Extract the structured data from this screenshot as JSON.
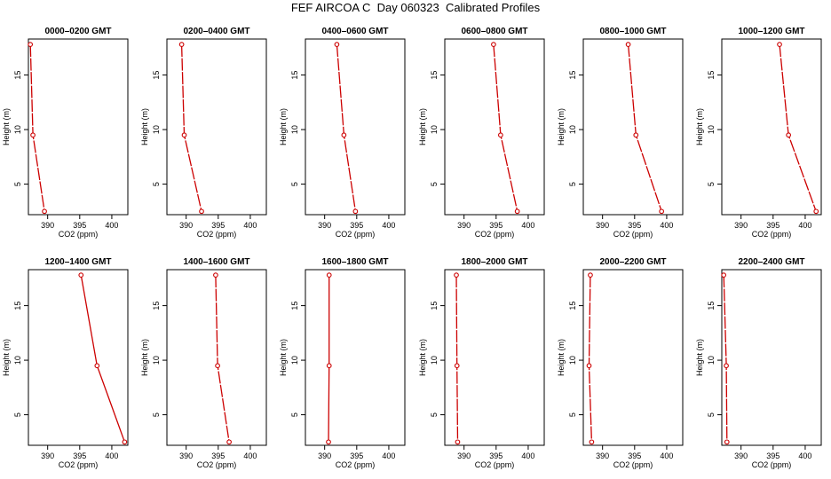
{
  "figure": {
    "title": "FEF AIRCOA C  Day 060323  Calibrated Profiles"
  },
  "colors": {
    "line": "#cc0000",
    "axis": "#000000"
  },
  "chart_data": [
    {
      "type": "line",
      "title": "0000–0200 GMT",
      "xlabel": "CO2 (ppm)",
      "ylabel": "Height (m)",
      "xlim": [
        387,
        402.5
      ],
      "ylim": [
        2.2,
        18.3
      ],
      "xticks": [
        "390",
        "395",
        "400"
      ],
      "yticks": [
        "5",
        "10",
        "15"
      ],
      "series": [
        {
          "x": [
            387.3,
            387.7,
            389.5
          ],
          "y": [
            17.8,
            9.5,
            2.5
          ],
          "style": "dashed"
        }
      ]
    },
    {
      "type": "line",
      "title": "0200–0400 GMT",
      "xlabel": "CO2 (ppm)",
      "ylabel": "Height (m)",
      "xlim": [
        387,
        402.5
      ],
      "ylim": [
        2.2,
        18.3
      ],
      "xticks": [
        "390",
        "395",
        "400"
      ],
      "yticks": [
        "5",
        "10",
        "15"
      ],
      "series": [
        {
          "x": [
            389.3,
            389.7,
            392.4
          ],
          "y": [
            17.8,
            9.5,
            2.5
          ],
          "style": "dashed"
        }
      ]
    },
    {
      "type": "line",
      "title": "0400–0600 GMT",
      "xlabel": "CO2 (ppm)",
      "ylabel": "Height (m)",
      "xlim": [
        387,
        402.5
      ],
      "ylim": [
        2.2,
        18.3
      ],
      "xticks": [
        "390",
        "395",
        "400"
      ],
      "yticks": [
        "5",
        "10",
        "15"
      ],
      "series": [
        {
          "x": [
            391.9,
            393.0,
            394.8
          ],
          "y": [
            17.8,
            9.5,
            2.5
          ],
          "style": "dashed"
        }
      ]
    },
    {
      "type": "line",
      "title": "0600–0800 GMT",
      "xlabel": "CO2 (ppm)",
      "ylabel": "Height (m)",
      "xlim": [
        387,
        402.5
      ],
      "ylim": [
        2.2,
        18.3
      ],
      "xticks": [
        "390",
        "395",
        "400"
      ],
      "yticks": [
        "5",
        "10",
        "15"
      ],
      "series": [
        {
          "x": [
            394.6,
            395.7,
            398.3
          ],
          "y": [
            17.8,
            9.5,
            2.5
          ],
          "style": "dashed"
        }
      ]
    },
    {
      "type": "line",
      "title": "0800–1000 GMT",
      "xlabel": "CO2 (ppm)",
      "ylabel": "Height (m)",
      "xlim": [
        387,
        402.5
      ],
      "ylim": [
        2.2,
        18.3
      ],
      "xticks": [
        "390",
        "395",
        "400"
      ],
      "yticks": [
        "5",
        "10",
        "15"
      ],
      "series": [
        {
          "x": [
            394.0,
            395.2,
            399.2
          ],
          "y": [
            17.8,
            9.5,
            2.5
          ],
          "style": "dashed"
        }
      ]
    },
    {
      "type": "line",
      "title": "1000–1200 GMT",
      "xlabel": "CO2 (ppm)",
      "ylabel": "Height (m)",
      "xlim": [
        387,
        402.5
      ],
      "ylim": [
        2.2,
        18.3
      ],
      "xticks": [
        "390",
        "395",
        "400"
      ],
      "yticks": [
        "5",
        "10",
        "15"
      ],
      "series": [
        {
          "x": [
            396.0,
            397.4,
            401.7
          ],
          "y": [
            17.8,
            9.5,
            2.5
          ],
          "style": "dashed"
        }
      ]
    },
    {
      "type": "line",
      "title": "1200–1400 GMT",
      "xlabel": "CO2 (ppm)",
      "ylabel": "Height (m)",
      "xlim": [
        387,
        402.5
      ],
      "ylim": [
        2.2,
        18.3
      ],
      "xticks": [
        "390",
        "395",
        "400"
      ],
      "yticks": [
        "5",
        "10",
        "15"
      ],
      "series": [
        {
          "x": [
            395.2,
            397.7,
            402.0
          ],
          "y": [
            17.8,
            9.5,
            2.5
          ],
          "style": "solid"
        }
      ]
    },
    {
      "type": "line",
      "title": "1400–1600 GMT",
      "xlabel": "CO2 (ppm)",
      "ylabel": "Height (m)",
      "xlim": [
        387,
        402.5
      ],
      "ylim": [
        2.2,
        18.3
      ],
      "xticks": [
        "390",
        "395",
        "400"
      ],
      "yticks": [
        "5",
        "10",
        "15"
      ],
      "series": [
        {
          "x": [
            394.6,
            394.9,
            396.7
          ],
          "y": [
            17.8,
            9.5,
            2.5
          ],
          "style": "dashed"
        }
      ]
    },
    {
      "type": "line",
      "title": "1600–1800 GMT",
      "xlabel": "CO2 (ppm)",
      "ylabel": "Height (m)",
      "xlim": [
        387,
        402.5
      ],
      "ylim": [
        2.2,
        18.3
      ],
      "xticks": [
        "390",
        "395",
        "400"
      ],
      "yticks": [
        "5",
        "10",
        "15"
      ],
      "series": [
        {
          "x": [
            390.7,
            390.7,
            390.6
          ],
          "y": [
            17.8,
            9.5,
            2.5
          ],
          "style": "solid"
        }
      ]
    },
    {
      "type": "line",
      "title": "1800–2000 GMT",
      "xlabel": "CO2 (ppm)",
      "ylabel": "Height (m)",
      "xlim": [
        387,
        402.5
      ],
      "ylim": [
        2.2,
        18.3
      ],
      "xticks": [
        "390",
        "395",
        "400"
      ],
      "yticks": [
        "5",
        "10",
        "15"
      ],
      "series": [
        {
          "x": [
            388.8,
            388.9,
            389.0
          ],
          "y": [
            17.8,
            9.5,
            2.5
          ],
          "style": "dashed"
        }
      ]
    },
    {
      "type": "line",
      "title": "2000–2200 GMT",
      "xlabel": "CO2 (ppm)",
      "ylabel": "Height (m)",
      "xlim": [
        387,
        402.5
      ],
      "ylim": [
        2.2,
        18.3
      ],
      "xticks": [
        "390",
        "395",
        "400"
      ],
      "yticks": [
        "5",
        "10",
        "15"
      ],
      "series": [
        {
          "x": [
            388.1,
            387.9,
            388.3
          ],
          "y": [
            17.8,
            9.5,
            2.5
          ],
          "style": "dashed"
        }
      ]
    },
    {
      "type": "line",
      "title": "2200–2400 GMT",
      "xlabel": "CO2 (ppm)",
      "ylabel": "Height (m)",
      "xlim": [
        387,
        402.5
      ],
      "ylim": [
        2.2,
        18.3
      ],
      "xticks": [
        "390",
        "395",
        "400"
      ],
      "yticks": [
        "5",
        "10",
        "15"
      ],
      "series": [
        {
          "x": [
            387.3,
            387.7,
            387.8
          ],
          "y": [
            17.8,
            9.5,
            2.5
          ],
          "style": "dashed"
        }
      ]
    }
  ]
}
